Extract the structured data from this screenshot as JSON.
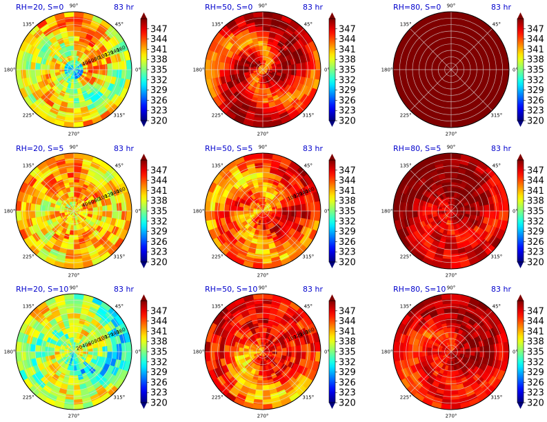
{
  "chart_data": {
    "type": "heatmap",
    "projection": "polar",
    "grid": true,
    "colormap": "jet",
    "colorbar": {
      "vmin": 320,
      "vmax": 350,
      "extend": "both",
      "ticks": [
        347,
        344,
        341,
        338,
        335,
        332,
        329,
        326,
        323,
        320
      ]
    },
    "angle_labels": [
      {
        "deg": 0,
        "label": "0°"
      },
      {
        "deg": 45,
        "label": "45°"
      },
      {
        "deg": 90,
        "label": "90°"
      },
      {
        "deg": 135,
        "label": "135°"
      },
      {
        "deg": 180,
        "label": "180°"
      },
      {
        "deg": 225,
        "label": "225°"
      },
      {
        "deg": 270,
        "label": "270°"
      },
      {
        "deg": 315,
        "label": "315°"
      }
    ],
    "radius_rings": [
      20,
      40,
      60,
      80,
      100,
      120,
      140,
      160
    ],
    "radius_max": 180,
    "panels": [
      {
        "title": "RH=20, S=0",
        "time": "83 hr",
        "field": {
          "background": 342,
          "core": 329,
          "core_radius": 30,
          "bands": [
            {
              "ang": 210,
              "val": 334,
              "amp": 5
            },
            {
              "ang": 60,
              "val": 336,
              "amp": 3
            }
          ],
          "noise": 4
        },
        "radius_labels": [
          "40",
          "60",
          "80",
          "100",
          "120",
          "140",
          "160"
        ]
      },
      {
        "title": "RH=50, S=0",
        "time": "83 hr",
        "field": {
          "background": 350,
          "core": 343,
          "core_radius": 18,
          "bands": [
            {
              "ang": 30,
              "val": 341,
              "amp": 4
            },
            {
              "ang": 200,
              "val": 342,
              "amp": 3
            }
          ],
          "noise": 2
        },
        "radius_labels": []
      },
      {
        "title": "RH=80, S=0",
        "time": "83 hr",
        "field": {
          "background": 350,
          "core": 350,
          "core_radius": 0,
          "bands": [],
          "noise": 0
        },
        "radius_labels": []
      },
      {
        "title": "RH=20, S=5",
        "time": "83 hr",
        "field": {
          "background": 342,
          "core": 340,
          "core_radius": 30,
          "bands": [
            {
              "ang": 100,
              "val": 338,
              "amp": 3
            },
            {
              "ang": 260,
              "val": 339,
              "amp": 3
            }
          ],
          "noise": 4
        },
        "radius_labels": [
          "40",
          "60",
          "80",
          "100",
          "120",
          "140",
          "160"
        ]
      },
      {
        "title": "RH=50, S=5",
        "time": "83 hr",
        "field": {
          "background": 347,
          "core": 345,
          "core_radius": 25,
          "bands": [
            {
              "ang": 160,
              "val": 340,
              "amp": 5
            },
            {
              "ang": 20,
              "val": 339,
              "amp": 4
            }
          ],
          "noise": 3
        },
        "radius_labels": [
          "100",
          "120",
          "140",
          "160"
        ]
      },
      {
        "title": "RH=80, S=5",
        "time": "83 hr",
        "field": {
          "background": 350,
          "core": 348,
          "core_radius": 20,
          "bands": [
            {
              "ang": 220,
              "val": 345,
              "amp": 3
            },
            {
              "ang": 120,
              "val": 346,
              "amp": 2
            }
          ],
          "noise": 2
        },
        "radius_labels": []
      },
      {
        "title": "RH=20, S=10",
        "time": "83 hr",
        "field": {
          "background": 339,
          "core": 338,
          "core_radius": 15,
          "bands": [
            {
              "ang": 75,
              "val": 334,
              "amp": 4
            },
            {
              "ang": 240,
              "val": 330,
              "amp": 3
            }
          ],
          "noise": 4
        },
        "radius_labels": [
          "20",
          "40",
          "60",
          "80",
          "100",
          "120",
          "140",
          "160"
        ]
      },
      {
        "title": "RH=50, S=10",
        "time": "83 hr",
        "field": {
          "background": 346,
          "core": 343,
          "core_radius": 20,
          "bands": [
            {
              "ang": 150,
              "val": 339,
              "amp": 5
            },
            {
              "ang": 0,
              "val": 347,
              "amp": 2
            }
          ],
          "noise": 3
        },
        "radius_labels": [
          "100",
          "120",
          "140",
          "160"
        ]
      },
      {
        "title": "RH=80, S=10",
        "time": "83 hr",
        "field": {
          "background": 349,
          "core": 349,
          "core_radius": 10,
          "bands": [
            {
              "ang": 70,
              "val": 343,
              "amp": 4
            },
            {
              "ang": 180,
              "val": 345,
              "amp": 3
            }
          ],
          "noise": 2
        },
        "radius_labels": []
      }
    ]
  }
}
